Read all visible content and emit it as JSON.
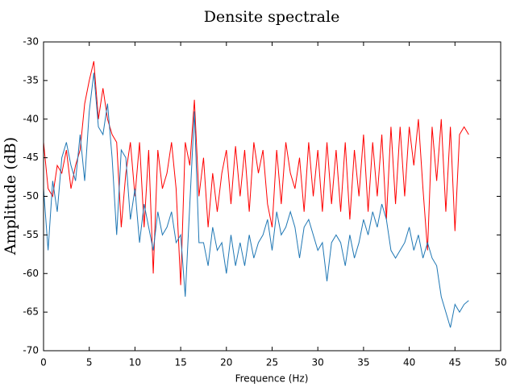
{
  "chart_data": {
    "type": "line",
    "title": "Densite spectrale",
    "xlabel": "Frequence (Hz)",
    "ylabel": "Amplitude (dB)",
    "x": [
      0,
      0.5,
      1,
      1.5,
      2,
      2.5,
      3,
      3.5,
      4,
      4.5,
      5,
      5.5,
      6,
      6.5,
      7,
      7.5,
      8,
      8.5,
      9,
      9.5,
      10,
      10.5,
      11,
      11.5,
      12,
      12.5,
      13,
      13.5,
      14,
      14.5,
      15,
      15.5,
      16,
      16.5,
      17,
      17.5,
      18,
      18.5,
      19,
      19.5,
      20,
      20.5,
      21,
      21.5,
      22,
      22.5,
      23,
      23.5,
      24,
      24.5,
      25,
      25.5,
      26,
      26.5,
      27,
      27.5,
      28,
      28.5,
      29,
      29.5,
      30,
      30.5,
      31,
      31.5,
      32,
      32.5,
      33,
      33.5,
      34,
      34.5,
      35,
      35.5,
      36,
      36.5,
      37,
      37.5,
      38,
      38.5,
      39,
      39.5,
      40,
      40.5,
      41,
      41.5,
      42,
      42.5,
      43,
      43.5,
      44,
      44.5,
      45,
      45.5,
      46,
      46.5
    ],
    "series": [
      {
        "color": "#ff0000",
        "values": [
          -43,
          -49,
          -50,
          -46,
          -47,
          -44,
          -49,
          -46,
          -44,
          -38,
          -35,
          -32.5,
          -40,
          -36,
          -40,
          -42,
          -43,
          -54,
          -47,
          -43,
          -50,
          -43,
          -54,
          -44,
          -60,
          -44,
          -49,
          -47,
          -43,
          -49,
          -61.5,
          -43,
          -46,
          -37.5,
          -50,
          -45,
          -54,
          -47,
          -52,
          -47,
          -44,
          -51,
          -43.5,
          -50,
          -44,
          -52,
          -43,
          -47,
          -44,
          -51,
          -54,
          -44,
          -51,
          -43,
          -47,
          -49,
          -45,
          -52,
          -43,
          -50,
          -44,
          -52,
          -43,
          -51,
          -44,
          -52,
          -43,
          -53,
          -44,
          -50,
          -42,
          -52,
          -43,
          -50,
          -42,
          -53,
          -41,
          -51,
          -41,
          -50,
          -41,
          -46,
          -40,
          -49,
          -57,
          -41,
          -48,
          -40,
          -52,
          -41,
          -54.5,
          -42,
          -41,
          -42
        ]
      },
      {
        "color": "#1f77b4",
        "values": [
          -49,
          -57,
          -48,
          -52,
          -45,
          -43,
          -46,
          -48,
          -42,
          -48,
          -39,
          -34,
          -41,
          -42,
          -38,
          -45,
          -55,
          -44,
          -45,
          -53,
          -49,
          -56,
          -51,
          -54,
          -57,
          -52,
          -55,
          -54,
          -52,
          -56,
          -55,
          -63,
          -51,
          -39,
          -56,
          -56,
          -59,
          -54,
          -57,
          -56,
          -60,
          -55,
          -59,
          -56,
          -59,
          -55,
          -58,
          -56,
          -55,
          -53,
          -57,
          -52,
          -55,
          -54,
          -52,
          -54,
          -58,
          -54,
          -53,
          -55,
          -57,
          -56,
          -61,
          -56,
          -55,
          -56,
          -59,
          -55,
          -58,
          -56,
          -53,
          -55,
          -52,
          -54,
          -51,
          -53,
          -57,
          -58,
          -57,
          -56,
          -54,
          -57,
          -55,
          -58,
          -56,
          -58,
          -59,
          -63,
          -65,
          -67,
          -64,
          -65,
          -64,
          -63.5
        ]
      }
    ],
    "xlim": [
      0,
      50
    ],
    "xticks": [
      0,
      5,
      10,
      15,
      20,
      25,
      30,
      35,
      40,
      45,
      50
    ],
    "ylim": [
      -70,
      -30
    ],
    "yticks": [
      -70,
      -65,
      -60,
      -55,
      -50,
      -45,
      -40,
      -35,
      -30
    ]
  }
}
